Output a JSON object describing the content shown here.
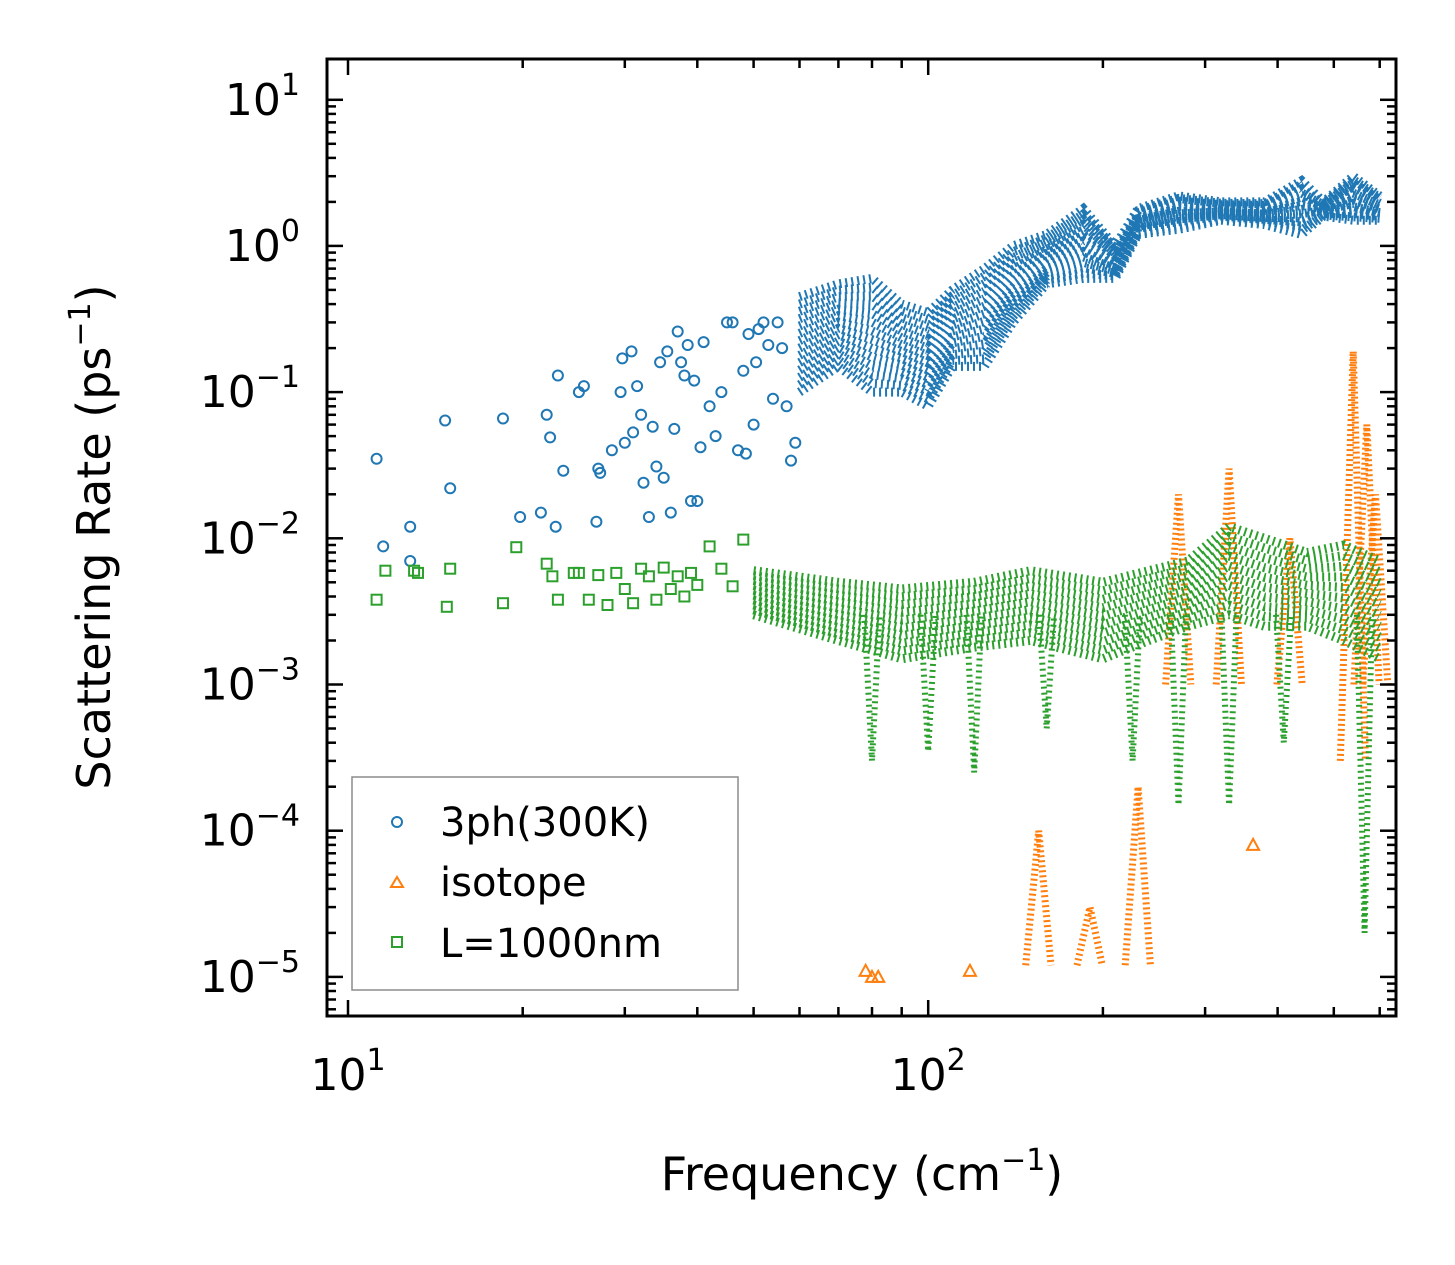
{
  "chart_data": {
    "type": "scatter",
    "xscale": "log",
    "yscale": "log",
    "xlim": [
      9.2,
      640
    ],
    "ylim": [
      5.4e-06,
      19
    ],
    "xlabel": "Frequency (cm",
    "xlabel_sup": "−1",
    "xlabel_end": ")",
    "ylabel": "Scattering Rate (ps",
    "ylabel_sup": "−1",
    "ylabel_end": ")",
    "x_ticks": [
      {
        "value": 10,
        "base": "10",
        "exp": "1"
      },
      {
        "value": 100,
        "base": "10",
        "exp": "2"
      }
    ],
    "y_ticks": [
      {
        "value": 10,
        "base": "10",
        "exp": "1"
      },
      {
        "value": 1,
        "base": "10",
        "exp": "0"
      },
      {
        "value": 0.1,
        "base": "10",
        "exp": "−1"
      },
      {
        "value": 0.01,
        "base": "10",
        "exp": "−2"
      },
      {
        "value": 0.001,
        "base": "10",
        "exp": "−3"
      },
      {
        "value": 0.0001,
        "base": "10",
        "exp": "−4"
      },
      {
        "value": 1e-05,
        "base": "10",
        "exp": "−5"
      }
    ],
    "legend_position": "lower-left",
    "series": [
      {
        "name": "3ph(300K)",
        "marker": "circle",
        "color": "#1f77b4",
        "points": [
          [
            11.2,
            0.035
          ],
          [
            11.5,
            0.0088
          ],
          [
            12.8,
            0.012
          ],
          [
            12.8,
            0.007
          ],
          [
            14.7,
            0.064
          ],
          [
            15.0,
            0.022
          ],
          [
            18.5,
            0.066
          ],
          [
            19.8,
            0.014
          ],
          [
            21.5,
            0.015
          ],
          [
            22.0,
            0.07
          ],
          [
            22.3,
            0.049
          ],
          [
            22.8,
            0.012
          ],
          [
            23.0,
            0.13
          ],
          [
            23.5,
            0.029
          ],
          [
            25.0,
            0.1
          ],
          [
            25.5,
            0.11
          ],
          [
            26.8,
            0.013
          ],
          [
            27.0,
            0.03
          ],
          [
            27.2,
            0.028
          ],
          [
            28.5,
            0.04
          ],
          [
            29.5,
            0.1
          ],
          [
            29.7,
            0.17
          ],
          [
            30.0,
            0.045
          ],
          [
            30.8,
            0.19
          ],
          [
            31.0,
            0.053
          ],
          [
            31.5,
            0.11
          ],
          [
            32.0,
            0.07
          ],
          [
            32.3,
            0.024
          ],
          [
            33.0,
            0.014
          ],
          [
            33.5,
            0.058
          ],
          [
            34.0,
            0.031
          ],
          [
            34.5,
            0.16
          ],
          [
            35.0,
            0.026
          ],
          [
            35.5,
            0.19
          ],
          [
            36.0,
            0.015
          ],
          [
            36.5,
            0.056
          ],
          [
            37.0,
            0.26
          ],
          [
            37.5,
            0.16
          ],
          [
            38.0,
            0.13
          ],
          [
            38.5,
            0.21
          ],
          [
            39.0,
            0.018
          ],
          [
            39.5,
            0.12
          ],
          [
            40.0,
            0.018
          ],
          [
            40.5,
            0.042
          ],
          [
            41.0,
            0.22
          ],
          [
            42.0,
            0.08
          ],
          [
            43.0,
            0.05
          ],
          [
            44.0,
            0.1
          ],
          [
            45.0,
            0.3
          ],
          [
            46.0,
            0.3
          ],
          [
            47.0,
            0.04
          ],
          [
            48.0,
            0.14
          ],
          [
            48.5,
            0.038
          ],
          [
            49.0,
            0.25
          ],
          [
            50.0,
            0.06
          ],
          [
            50.5,
            0.16
          ],
          [
            51.0,
            0.27
          ],
          [
            52.0,
            0.3
          ],
          [
            53.0,
            0.21
          ],
          [
            54.0,
            0.09
          ],
          [
            55.0,
            0.3
          ],
          [
            56.0,
            0.2
          ],
          [
            57.0,
            0.08
          ],
          [
            58.0,
            0.034
          ],
          [
            59.0,
            0.045
          ]
        ]
      },
      {
        "name": "isotope",
        "marker": "triangle",
        "color": "#ff7f0e",
        "points": [
          [
            78,
            1.1e-05
          ],
          [
            80,
            1e-05
          ],
          [
            82,
            1e-05
          ],
          [
            118,
            1.1e-05
          ],
          [
            363,
            8e-05
          ]
        ]
      },
      {
        "name": "L=1000nm",
        "marker": "square",
        "color": "#2ca02c",
        "points": [
          [
            11.2,
            0.0038
          ],
          [
            11.6,
            0.006
          ],
          [
            13.0,
            0.006
          ],
          [
            13.2,
            0.0058
          ],
          [
            14.8,
            0.0034
          ],
          [
            15.0,
            0.0062
          ],
          [
            18.5,
            0.0036
          ],
          [
            19.5,
            0.0087
          ],
          [
            22.0,
            0.0067
          ],
          [
            22.5,
            0.0055
          ],
          [
            23.0,
            0.0038
          ],
          [
            24.5,
            0.0058
          ],
          [
            25.0,
            0.0058
          ],
          [
            26.0,
            0.0038
          ],
          [
            27.0,
            0.0056
          ],
          [
            28.0,
            0.0035
          ],
          [
            29.0,
            0.0058
          ],
          [
            30.0,
            0.0045
          ],
          [
            31.0,
            0.0036
          ],
          [
            32.0,
            0.0062
          ],
          [
            33.0,
            0.0055
          ],
          [
            34.0,
            0.0038
          ],
          [
            35.0,
            0.0063
          ],
          [
            36.0,
            0.0045
          ],
          [
            37.0,
            0.0055
          ],
          [
            38.0,
            0.004
          ],
          [
            39.0,
            0.0058
          ],
          [
            40.0,
            0.0048
          ],
          [
            42.0,
            0.0088
          ],
          [
            44.0,
            0.0062
          ],
          [
            46.0,
            0.0047
          ],
          [
            48.0,
            0.0098
          ]
        ]
      }
    ]
  }
}
